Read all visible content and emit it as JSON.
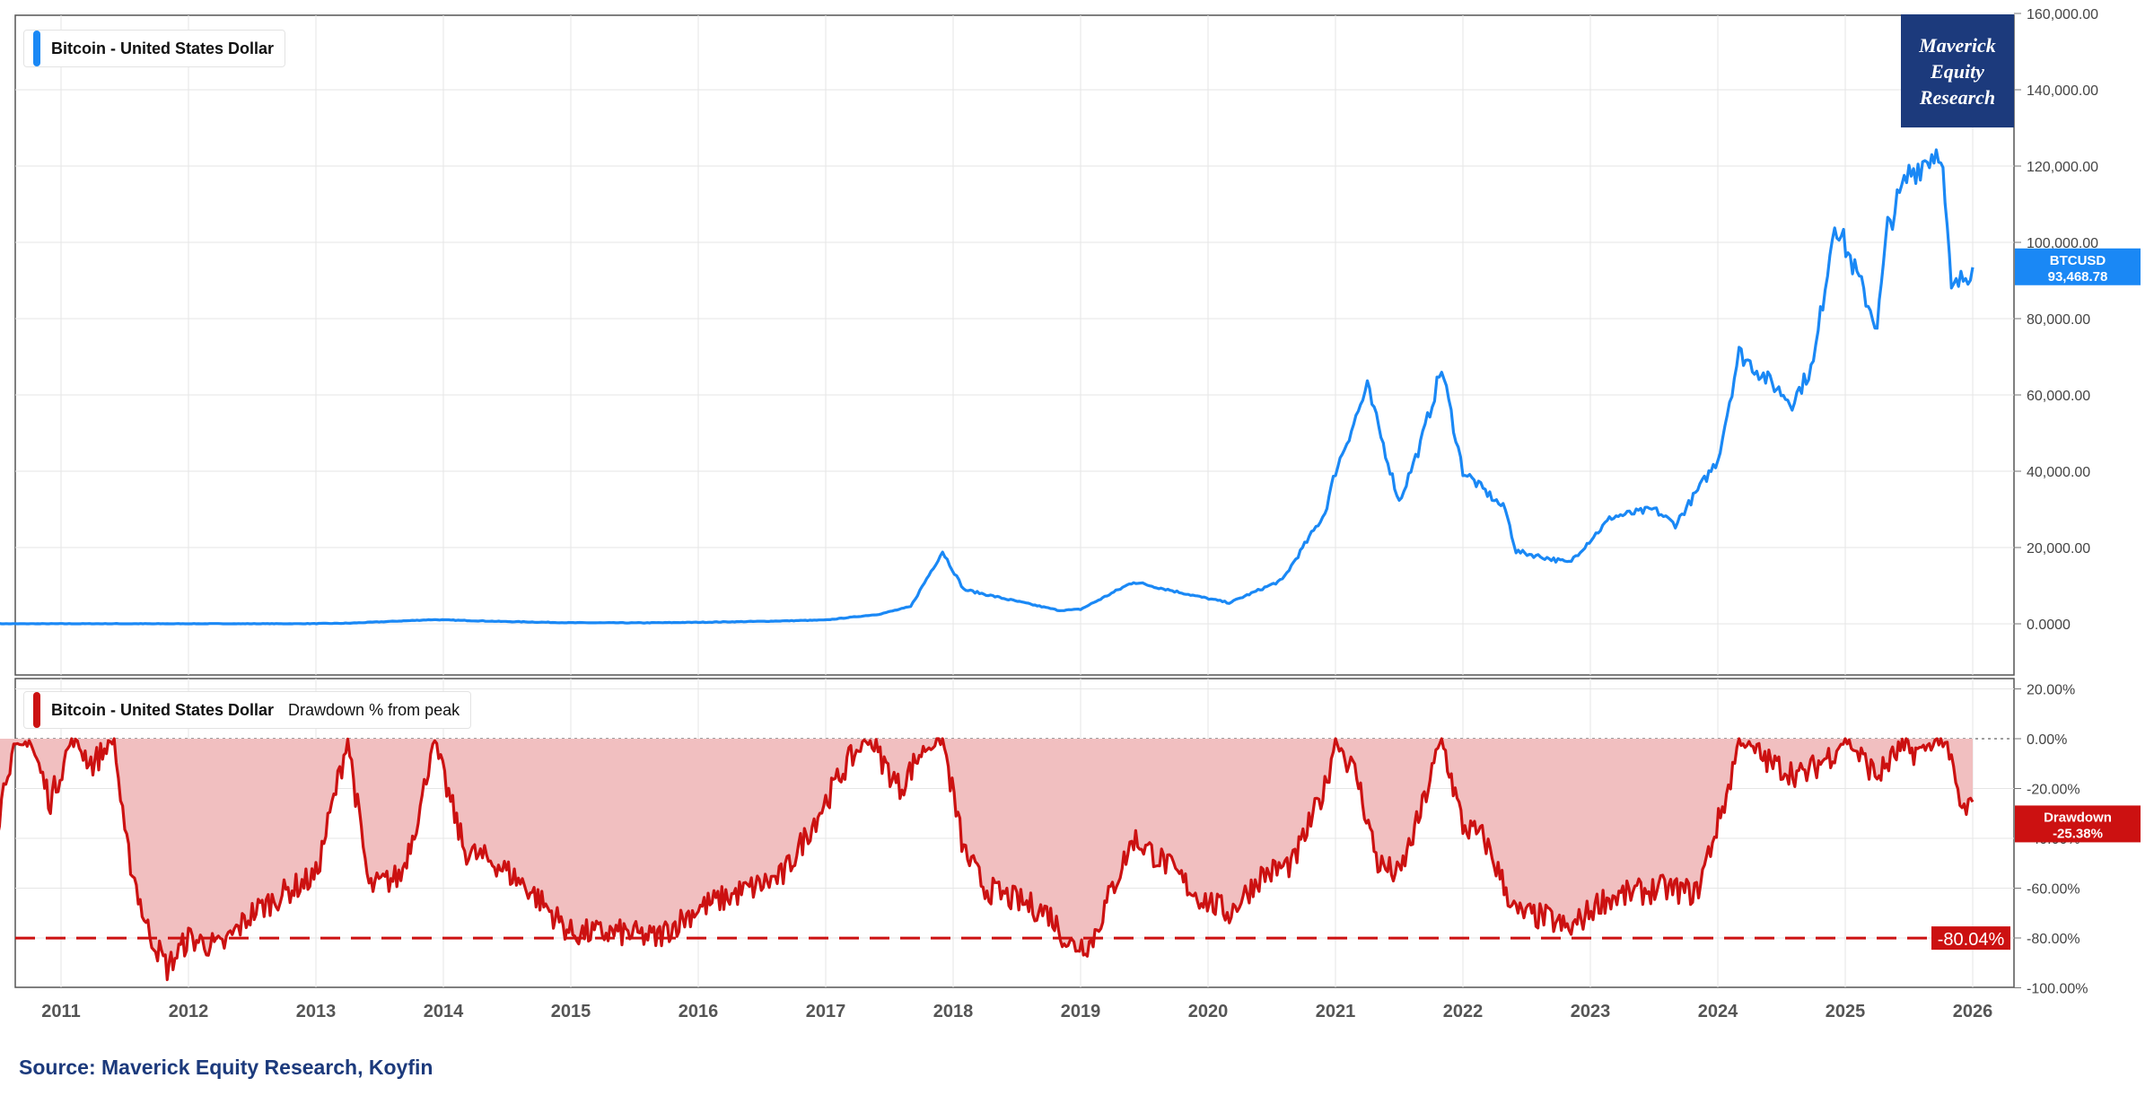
{
  "source_text": "Source: Maverick Equity Research, Koyfin",
  "logo": {
    "line1": "Maverick",
    "line2": "Equity",
    "line3": "Research"
  },
  "colors": {
    "price": "#1a88f5",
    "drawdown": "#cc1111",
    "drawdown_fill": "#f1bfc0",
    "logo_bg": "#1c3a7c",
    "grid": "#e6e6e6"
  },
  "chart_data": [
    {
      "type": "line",
      "panel": "top",
      "legend": "Bitcoin - United States Dollar",
      "ylim": [
        0,
        160000
      ],
      "yticks": [
        0,
        20000,
        40000,
        60000,
        80000,
        100000,
        120000,
        140000,
        160000
      ],
      "ytick_labels": [
        "0.0000",
        "20,000.00",
        "40,000.00",
        "60,000.00",
        "80,000.00",
        "100,000.00",
        "120,000.00",
        "140,000.00",
        "160,000.00"
      ],
      "last_value_label": {
        "name": "BTCUSD",
        "value": "93,468.78"
      },
      "series": [
        {
          "name": "Bitcoin - United States Dollar",
          "x": [
            "2010-07",
            "2011-06",
            "2011-11",
            "2012-12",
            "2013-04",
            "2013-12",
            "2014-06",
            "2015-01",
            "2015-08",
            "2016-01",
            "2016-07",
            "2017-01",
            "2017-06",
            "2017-09",
            "2017-12",
            "2018-02",
            "2018-06",
            "2018-11",
            "2019-01",
            "2019-06",
            "2019-12",
            "2020-03",
            "2020-08",
            "2020-12",
            "2021-01",
            "2021-04",
            "2021-07",
            "2021-09",
            "2021-11",
            "2022-01",
            "2022-05",
            "2022-06",
            "2022-11",
            "2023-03",
            "2023-07",
            "2023-09",
            "2024-01",
            "2024-03",
            "2024-08",
            "2024-10",
            "2024-12",
            "2025-04",
            "2025-05",
            "2025-07",
            "2025-10",
            "2025-11",
            "2026-01"
          ],
          "values": [
            0,
            20,
            3,
            13,
            150,
            1100,
            650,
            280,
            250,
            400,
            650,
            1000,
            2500,
            4500,
            19000,
            9000,
            6500,
            3500,
            3800,
            11000,
            7200,
            5500,
            11500,
            29000,
            40000,
            62000,
            32000,
            47000,
            67000,
            40000,
            30000,
            19000,
            16000,
            28000,
            30000,
            26000,
            43000,
            71000,
            58000,
            68000,
            106000,
            78000,
            104000,
            118000,
            125000,
            87000,
            93468.78
          ]
        }
      ]
    },
    {
      "type": "area",
      "panel": "bottom",
      "legend": "Bitcoin - United States Dollar",
      "legend_extra": "Drawdown % from peak",
      "ylim": [
        -100,
        20
      ],
      "yticks": [
        20,
        0,
        -20,
        -40,
        -60,
        -80,
        -100
      ],
      "ytick_labels": [
        "20.00%",
        "0.00%",
        "-20.00%",
        "-40.00%",
        "-60.00%",
        "-80.00%",
        "-100.00%"
      ],
      "reference_line": {
        "value": -80.04,
        "label": "-80.04%"
      },
      "last_value_label": {
        "name": "Drawdown",
        "value": "-25.38%"
      },
      "series": [
        {
          "name": "Drawdown % from peak",
          "x": [
            "2010-07",
            "2010-08",
            "2010-10",
            "2010-12",
            "2011-02",
            "2011-04",
            "2011-06",
            "2011-07",
            "2011-09",
            "2011-11",
            "2012-01",
            "2012-04",
            "2012-07",
            "2012-10",
            "2013-01",
            "2013-04",
            "2013-06",
            "2013-09",
            "2013-11",
            "2013-12",
            "2014-03",
            "2014-06",
            "2014-09",
            "2015-01",
            "2015-06",
            "2015-09",
            "2016-01",
            "2016-06",
            "2016-09",
            "2017-01",
            "2017-03",
            "2017-05",
            "2017-08",
            "2017-10",
            "2017-12",
            "2018-02",
            "2018-04",
            "2018-07",
            "2018-10",
            "2018-12",
            "2019-02",
            "2019-04",
            "2019-06",
            "2019-09",
            "2019-12",
            "2020-03",
            "2020-06",
            "2020-09",
            "2020-12",
            "2021-01",
            "2021-03",
            "2021-05",
            "2021-07",
            "2021-09",
            "2021-11",
            "2022-01",
            "2022-03",
            "2022-06",
            "2022-09",
            "2022-11",
            "2023-02",
            "2023-05",
            "2023-08",
            "2023-11",
            "2024-02",
            "2024-03",
            "2024-06",
            "2024-09",
            "2024-12",
            "2025-01",
            "2025-04",
            "2025-06",
            "2025-08",
            "2025-10",
            "2025-11",
            "2025-12",
            "2026-01"
          ],
          "values": [
            -35,
            -10,
            0,
            -25,
            0,
            -10,
            0,
            -40,
            -75,
            -92,
            -80,
            -84,
            -70,
            -62,
            -55,
            0,
            -60,
            -55,
            -25,
            0,
            -45,
            -50,
            -60,
            -78,
            -78,
            -80,
            -68,
            -60,
            -55,
            -25,
            -10,
            0,
            -20,
            -5,
            0,
            -45,
            -60,
            -65,
            -70,
            -83,
            -82,
            -60,
            -40,
            -50,
            -63,
            -70,
            -55,
            -50,
            -20,
            0,
            -15,
            -50,
            -55,
            -30,
            0,
            -35,
            -40,
            -70,
            -72,
            -77,
            -65,
            -62,
            -60,
            -62,
            -20,
            0,
            -10,
            -15,
            -5,
            0,
            -15,
            -5,
            -5,
            0,
            -10,
            -30,
            -25.38
          ]
        }
      ]
    }
  ],
  "x_axis": {
    "ticks": [
      2011,
      2012,
      2013,
      2014,
      2015,
      2016,
      2017,
      2018,
      2019,
      2020,
      2021,
      2022,
      2023,
      2024,
      2025,
      2026
    ],
    "labels": [
      "2011",
      "2012",
      "2013",
      "2014",
      "2015",
      "2016",
      "2017",
      "2018",
      "2019",
      "2020",
      "2021",
      "2022",
      "2023",
      "2024",
      "2025",
      "2026"
    ]
  }
}
